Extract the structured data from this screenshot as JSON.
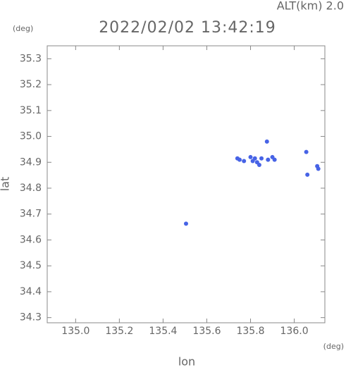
{
  "chart_data": {
    "type": "scatter",
    "title": "2022/02/02 13:42:19",
    "altitude_label": "ALT(km)  2.0",
    "x_unit": "(deg)",
    "y_unit": "(deg)",
    "x_label": "lon",
    "y_label": "lat",
    "color": "#4763e6",
    "xlim": [
      134.87,
      136.14
    ],
    "ylim": [
      34.28,
      35.35
    ],
    "xticks": [
      {
        "value": 135.0,
        "label": "135.0"
      },
      135.2,
      135.4,
      135.6,
      135.8,
      {
        "value": 136.0,
        "label": "136.0"
      }
    ],
    "yticks": [
      34.3,
      34.4,
      34.5,
      34.6,
      34.7,
      34.8,
      34.9,
      {
        "value": 35.0,
        "label": "35.0"
      },
      35.1,
      35.2,
      35.3
    ],
    "x": [
      135.74,
      135.75,
      135.77,
      135.8,
      135.82,
      135.83,
      135.84,
      135.81,
      135.85,
      135.88,
      135.9,
      135.91,
      135.875,
      136.055,
      136.06,
      136.105,
      136.11,
      135.505
    ],
    "values": [
      34.915,
      34.91,
      34.905,
      34.92,
      34.915,
      34.9,
      34.89,
      34.905,
      34.915,
      34.91,
      34.92,
      34.91,
      34.98,
      34.94,
      34.852,
      34.885,
      34.875,
      34.663
    ]
  }
}
